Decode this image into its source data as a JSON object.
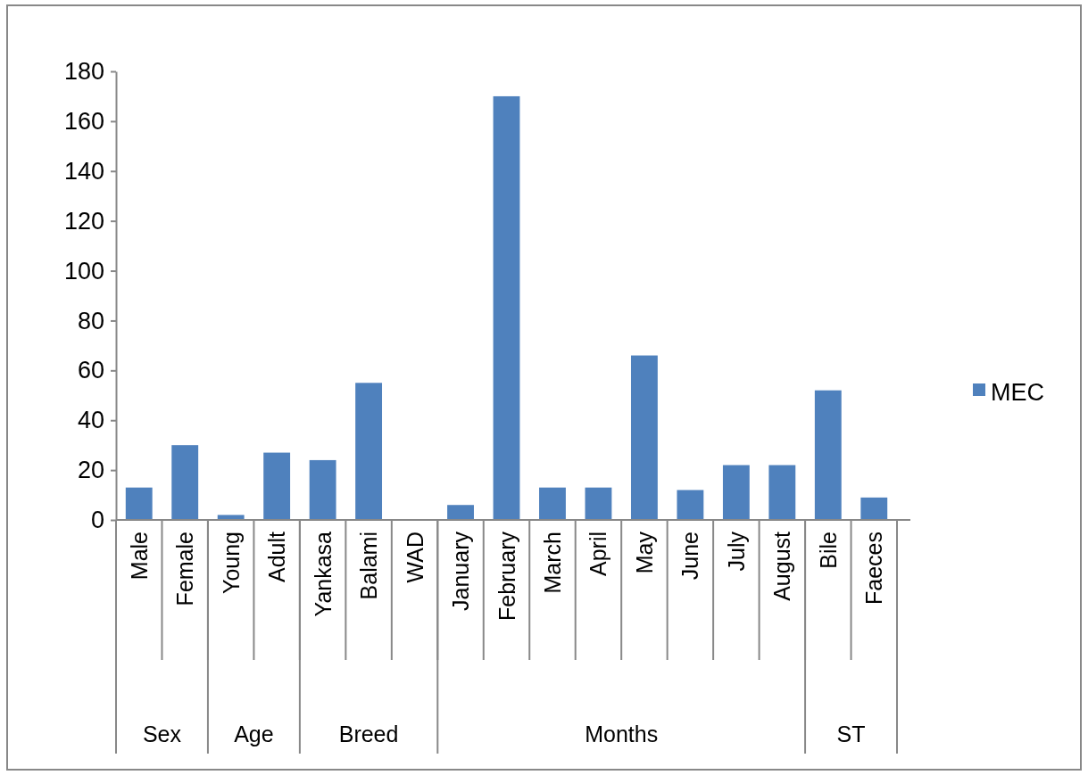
{
  "chart_data": {
    "type": "bar",
    "categories": [
      "Male",
      "Female",
      "Young",
      "Adult",
      "Yankasa",
      "Balami",
      "WAD",
      "January",
      "February",
      "March",
      "April",
      "May",
      "June",
      "July",
      "August",
      "Bile",
      "Faeces"
    ],
    "series": [
      {
        "name": "MEC",
        "color": "#4f81bd",
        "values": [
          13,
          30,
          2,
          27,
          24,
          55,
          0,
          6,
          170,
          13,
          13,
          66,
          12,
          22,
          22,
          52,
          9
        ]
      }
    ],
    "ylim": [
      0,
      180
    ],
    "yticks": [
      0,
      20,
      40,
      60,
      80,
      100,
      120,
      140,
      160,
      180
    ],
    "grid": false,
    "legend": "right",
    "annotations": [
      "Sex",
      "Age",
      "Breed",
      "Months",
      "ST"
    ]
  }
}
